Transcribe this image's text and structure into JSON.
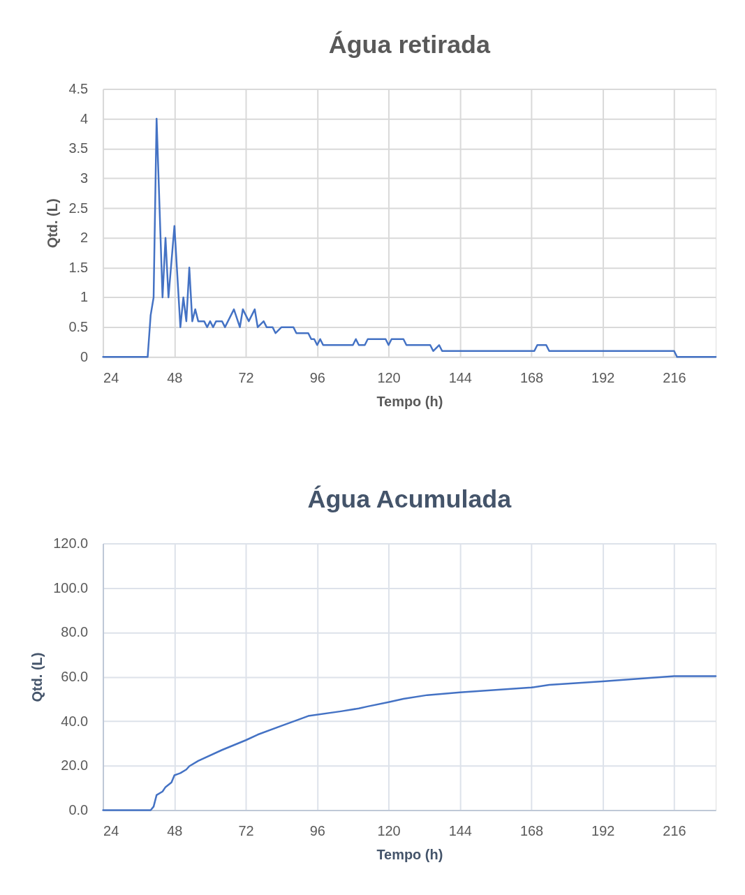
{
  "chart_data": [
    {
      "type": "line",
      "title": "Água retirada",
      "xlabel": "Tempo (h)",
      "ylabel": "Qtd. (L)",
      "x": [
        24,
        39,
        40,
        41,
        42,
        44,
        45,
        46,
        48,
        50,
        51,
        52,
        53,
        54,
        55,
        56,
        58,
        59,
        60,
        61,
        62,
        64,
        65,
        68,
        70,
        71,
        73,
        75,
        76,
        78,
        79,
        81,
        82,
        84,
        88,
        89,
        93,
        94,
        95,
        96,
        97,
        98,
        108,
        109,
        110,
        112,
        113,
        119,
        120,
        121,
        125,
        126,
        134,
        135,
        137,
        138,
        169,
        170,
        173,
        174,
        216,
        217,
        230
      ],
      "series": [
        {
          "color": "#4472c4",
          "values": [
            0,
            0,
            0.7,
            1,
            4,
            1,
            2,
            1,
            2.2,
            0.5,
            1,
            0.6,
            1.5,
            0.6,
            0.8,
            0.6,
            0.6,
            0.5,
            0.6,
            0.5,
            0.6,
            0.6,
            0.5,
            0.8,
            0.5,
            0.8,
            0.6,
            0.8,
            0.5,
            0.6,
            0.5,
            0.5,
            0.4,
            0.5,
            0.5,
            0.4,
            0.4,
            0.3,
            0.3,
            0.2,
            0.3,
            0.2,
            0.2,
            0.3,
            0.2,
            0.2,
            0.3,
            0.3,
            0.2,
            0.3,
            0.3,
            0.2,
            0.2,
            0.1,
            0.2,
            0.1,
            0.1,
            0.2,
            0.2,
            0.1,
            0.1,
            0,
            0
          ]
        }
      ],
      "xlim": [
        24,
        230
      ],
      "xticks": [
        24,
        48,
        72,
        96,
        120,
        144,
        168,
        192,
        216
      ],
      "ylim": [
        0,
        4.5
      ],
      "yticks": [
        0,
        0.5,
        1,
        1.5,
        2,
        2.5,
        3,
        3.5,
        4,
        4.5
      ],
      "grid": true
    },
    {
      "type": "line",
      "title": "Água Acumulada",
      "xlabel": "Tempo (h)",
      "ylabel": "Qtd. (L)",
      "x": [
        24,
        40,
        41,
        42,
        44,
        45,
        47,
        48,
        50,
        52,
        53,
        56,
        64,
        72,
        76,
        84,
        89,
        93,
        104,
        110,
        113,
        120,
        125,
        133,
        144,
        168,
        174,
        192,
        216,
        230
      ],
      "series": [
        {
          "color": "#4472c4",
          "values": [
            0,
            0,
            1.6,
            6.8,
            8.4,
            10.4,
            12.5,
            15.7,
            16.7,
            18.3,
            19.8,
            22.2,
            27.1,
            31.5,
            34,
            38,
            40.4,
            42.4,
            44.5,
            45.8,
            46.7,
            48.6,
            50.1,
            51.8,
            53,
            55.2,
            56.4,
            58,
            60.3,
            60.3
          ]
        }
      ],
      "xlim": [
        24,
        230
      ],
      "xticks": [
        24,
        48,
        72,
        96,
        120,
        144,
        168,
        192,
        216
      ],
      "ylim": [
        0,
        120
      ],
      "yticks": [
        {
          "value": 0,
          "label": "0.0"
        },
        {
          "value": 20,
          "label": "20.0"
        },
        {
          "value": 40,
          "label": "40.0"
        },
        {
          "value": 60,
          "label": "60.0"
        },
        {
          "value": 80,
          "label": "80.0"
        },
        {
          "value": 100,
          "label": "100.0"
        },
        {
          "value": 120,
          "label": "120.0"
        }
      ],
      "grid": true
    }
  ]
}
